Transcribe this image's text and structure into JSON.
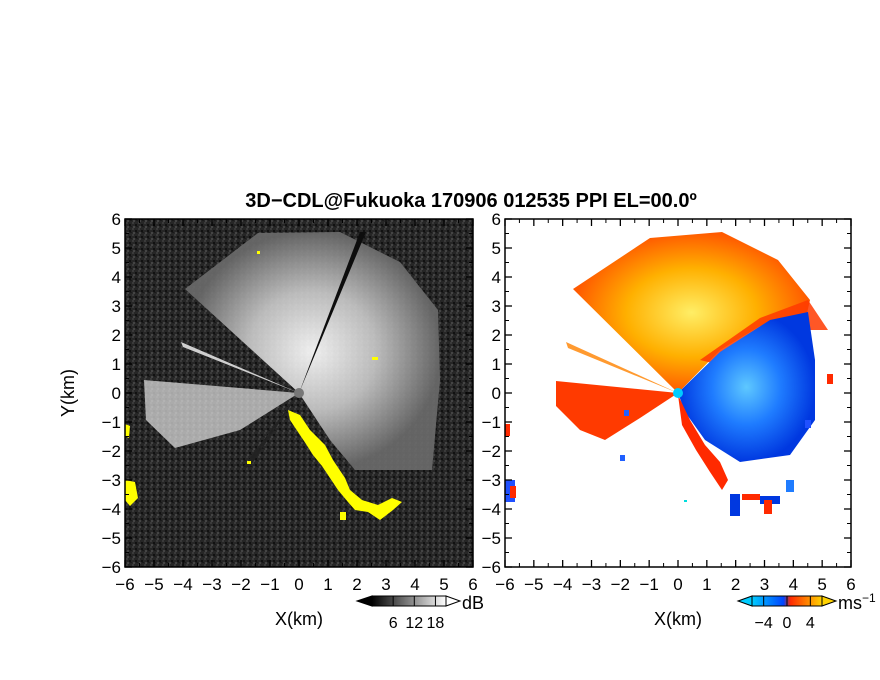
{
  "figure": {
    "title": "3D−CDL@Fukuoka 170906 012535 PPI EL=00.0º"
  },
  "chart_data": [
    {
      "type": "heatmap",
      "panel": "left",
      "title": "",
      "xlabel": "X(km)",
      "ylabel": "Y(km)",
      "xlim": [
        -6,
        6
      ],
      "ylim": [
        -6,
        6
      ],
      "x_ticks": [
        "−6",
        "−5",
        "−4",
        "−3",
        "−2",
        "−1",
        "0",
        "1",
        "2",
        "3",
        "4",
        "5",
        "6"
      ],
      "y_ticks": [
        "−6",
        "−5",
        "−4",
        "−3",
        "−2",
        "−1",
        "0",
        "1",
        "2",
        "3",
        "4",
        "5",
        "6"
      ],
      "colorbar": {
        "unit": "dB",
        "ticks": [
          "6",
          "12",
          "18"
        ],
        "range": [
          0,
          21
        ],
        "colors": [
          "#000000",
          "#ffffff"
        ]
      },
      "highlight_color": "#ffff00",
      "background_color": "#1c1c1c"
    },
    {
      "type": "heatmap",
      "panel": "right",
      "title": "",
      "xlabel": "X(km)",
      "ylabel": "",
      "xlim": [
        -6,
        6
      ],
      "ylim": [
        -6,
        6
      ],
      "x_ticks": [
        "−6",
        "−5",
        "−4",
        "−3",
        "−2",
        "−1",
        "0",
        "1",
        "2",
        "3",
        "4",
        "5",
        "6"
      ],
      "y_ticks": [
        "−6",
        "−5",
        "−4",
        "−3",
        "−2",
        "−1",
        "0",
        "1",
        "2",
        "3",
        "4",
        "5",
        "6"
      ],
      "colorbar": {
        "unit": "ms",
        "unit_exp": "−1",
        "ticks": [
          "−4",
          "0",
          "4"
        ],
        "range": [
          -6,
          6
        ],
        "colors": [
          "#00ccff",
          "#0044ff",
          "#ff2a00",
          "#ffd200"
        ]
      },
      "background_color": "#ffffff"
    }
  ]
}
